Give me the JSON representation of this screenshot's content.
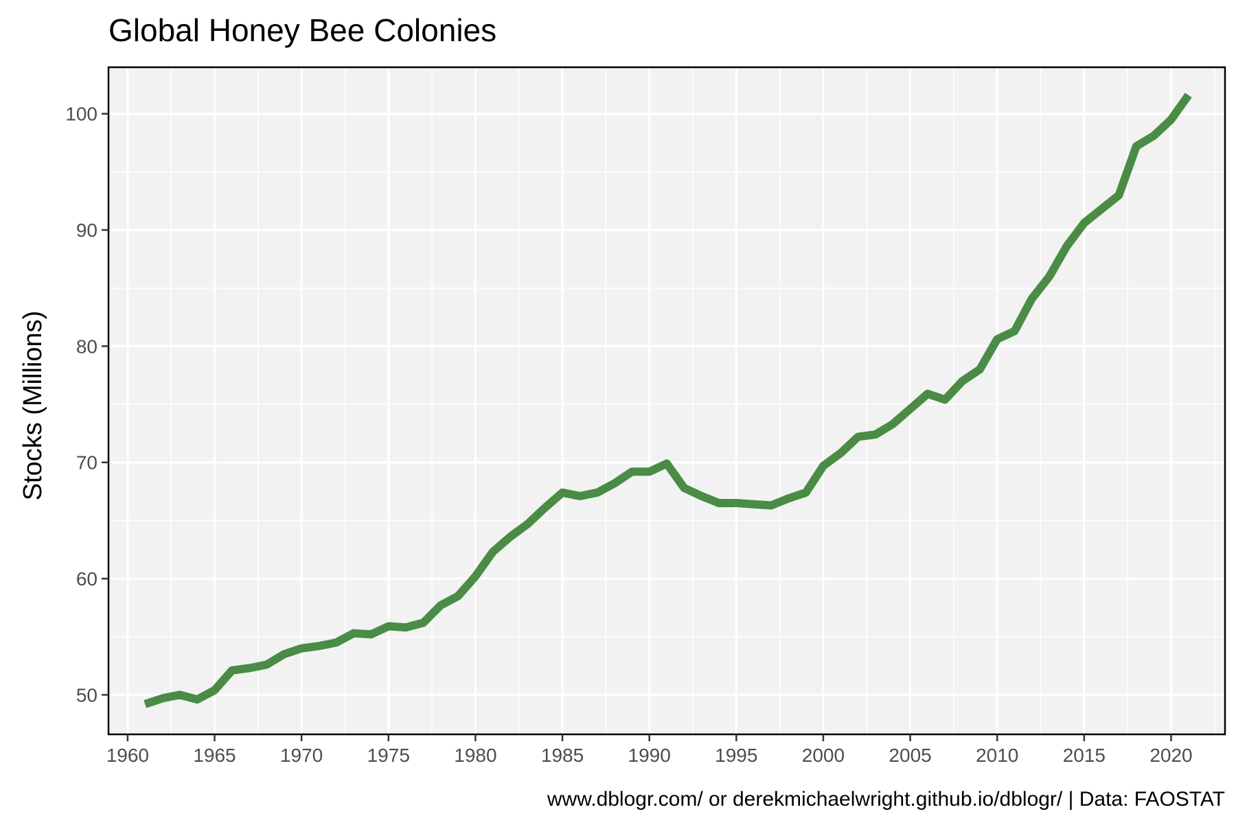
{
  "chart_data": {
    "type": "line",
    "title": "Global Honey Bee Colonies",
    "xlabel": "",
    "ylabel": "Stocks (Millions)",
    "caption": "www.dblogr.com/ or derekmichaelwright.github.io/dblogr/ | Data: FAOSTAT",
    "x": [
      1961,
      1962,
      1963,
      1964,
      1965,
      1966,
      1967,
      1968,
      1969,
      1970,
      1971,
      1972,
      1973,
      1974,
      1975,
      1976,
      1977,
      1978,
      1979,
      1980,
      1981,
      1982,
      1983,
      1984,
      1985,
      1986,
      1987,
      1988,
      1989,
      1990,
      1991,
      1992,
      1993,
      1994,
      1995,
      1996,
      1997,
      1998,
      1999,
      2000,
      2001,
      2002,
      2003,
      2004,
      2005,
      2006,
      2007,
      2008,
      2009,
      2010,
      2011,
      2012,
      2013,
      2014,
      2015,
      2016,
      2017,
      2018,
      2019,
      2020,
      2021
    ],
    "series": [
      {
        "values": [
          49.2,
          49.7,
          50.0,
          49.6,
          50.4,
          52.1,
          52.3,
          52.6,
          53.5,
          54.0,
          54.2,
          54.5,
          55.3,
          55.2,
          55.9,
          55.8,
          56.2,
          57.7,
          58.5,
          60.2,
          62.3,
          63.6,
          64.7,
          66.1,
          67.4,
          67.1,
          67.4,
          68.2,
          69.2,
          69.2,
          69.9,
          67.8,
          67.1,
          66.5,
          66.5,
          66.4,
          66.3,
          66.9,
          67.4,
          69.7,
          70.8,
          72.2,
          72.4,
          73.3,
          74.6,
          75.9,
          75.4,
          77.0,
          78.0,
          80.6,
          81.3,
          84.1,
          86.0,
          88.6,
          90.6,
          91.8,
          93.0,
          97.2,
          98.1,
          99.5,
          101.6
        ],
        "color": "#4a8c45"
      }
    ],
    "xticks": [
      "1960",
      "1965",
      "1970",
      "1975",
      "1980",
      "1985",
      "1990",
      "1995",
      "2000",
      "2005",
      "2010",
      "2015",
      "2020"
    ],
    "yticks": [
      "50",
      "60",
      "70",
      "80",
      "90",
      "100"
    ],
    "xlim": [
      1958.9,
      2023.1
    ],
    "ylim": [
      46.6,
      104.0
    ],
    "grid": true,
    "legend": "none",
    "panel_color": "#f2f2f2",
    "grid_color": "#ffffff"
  }
}
